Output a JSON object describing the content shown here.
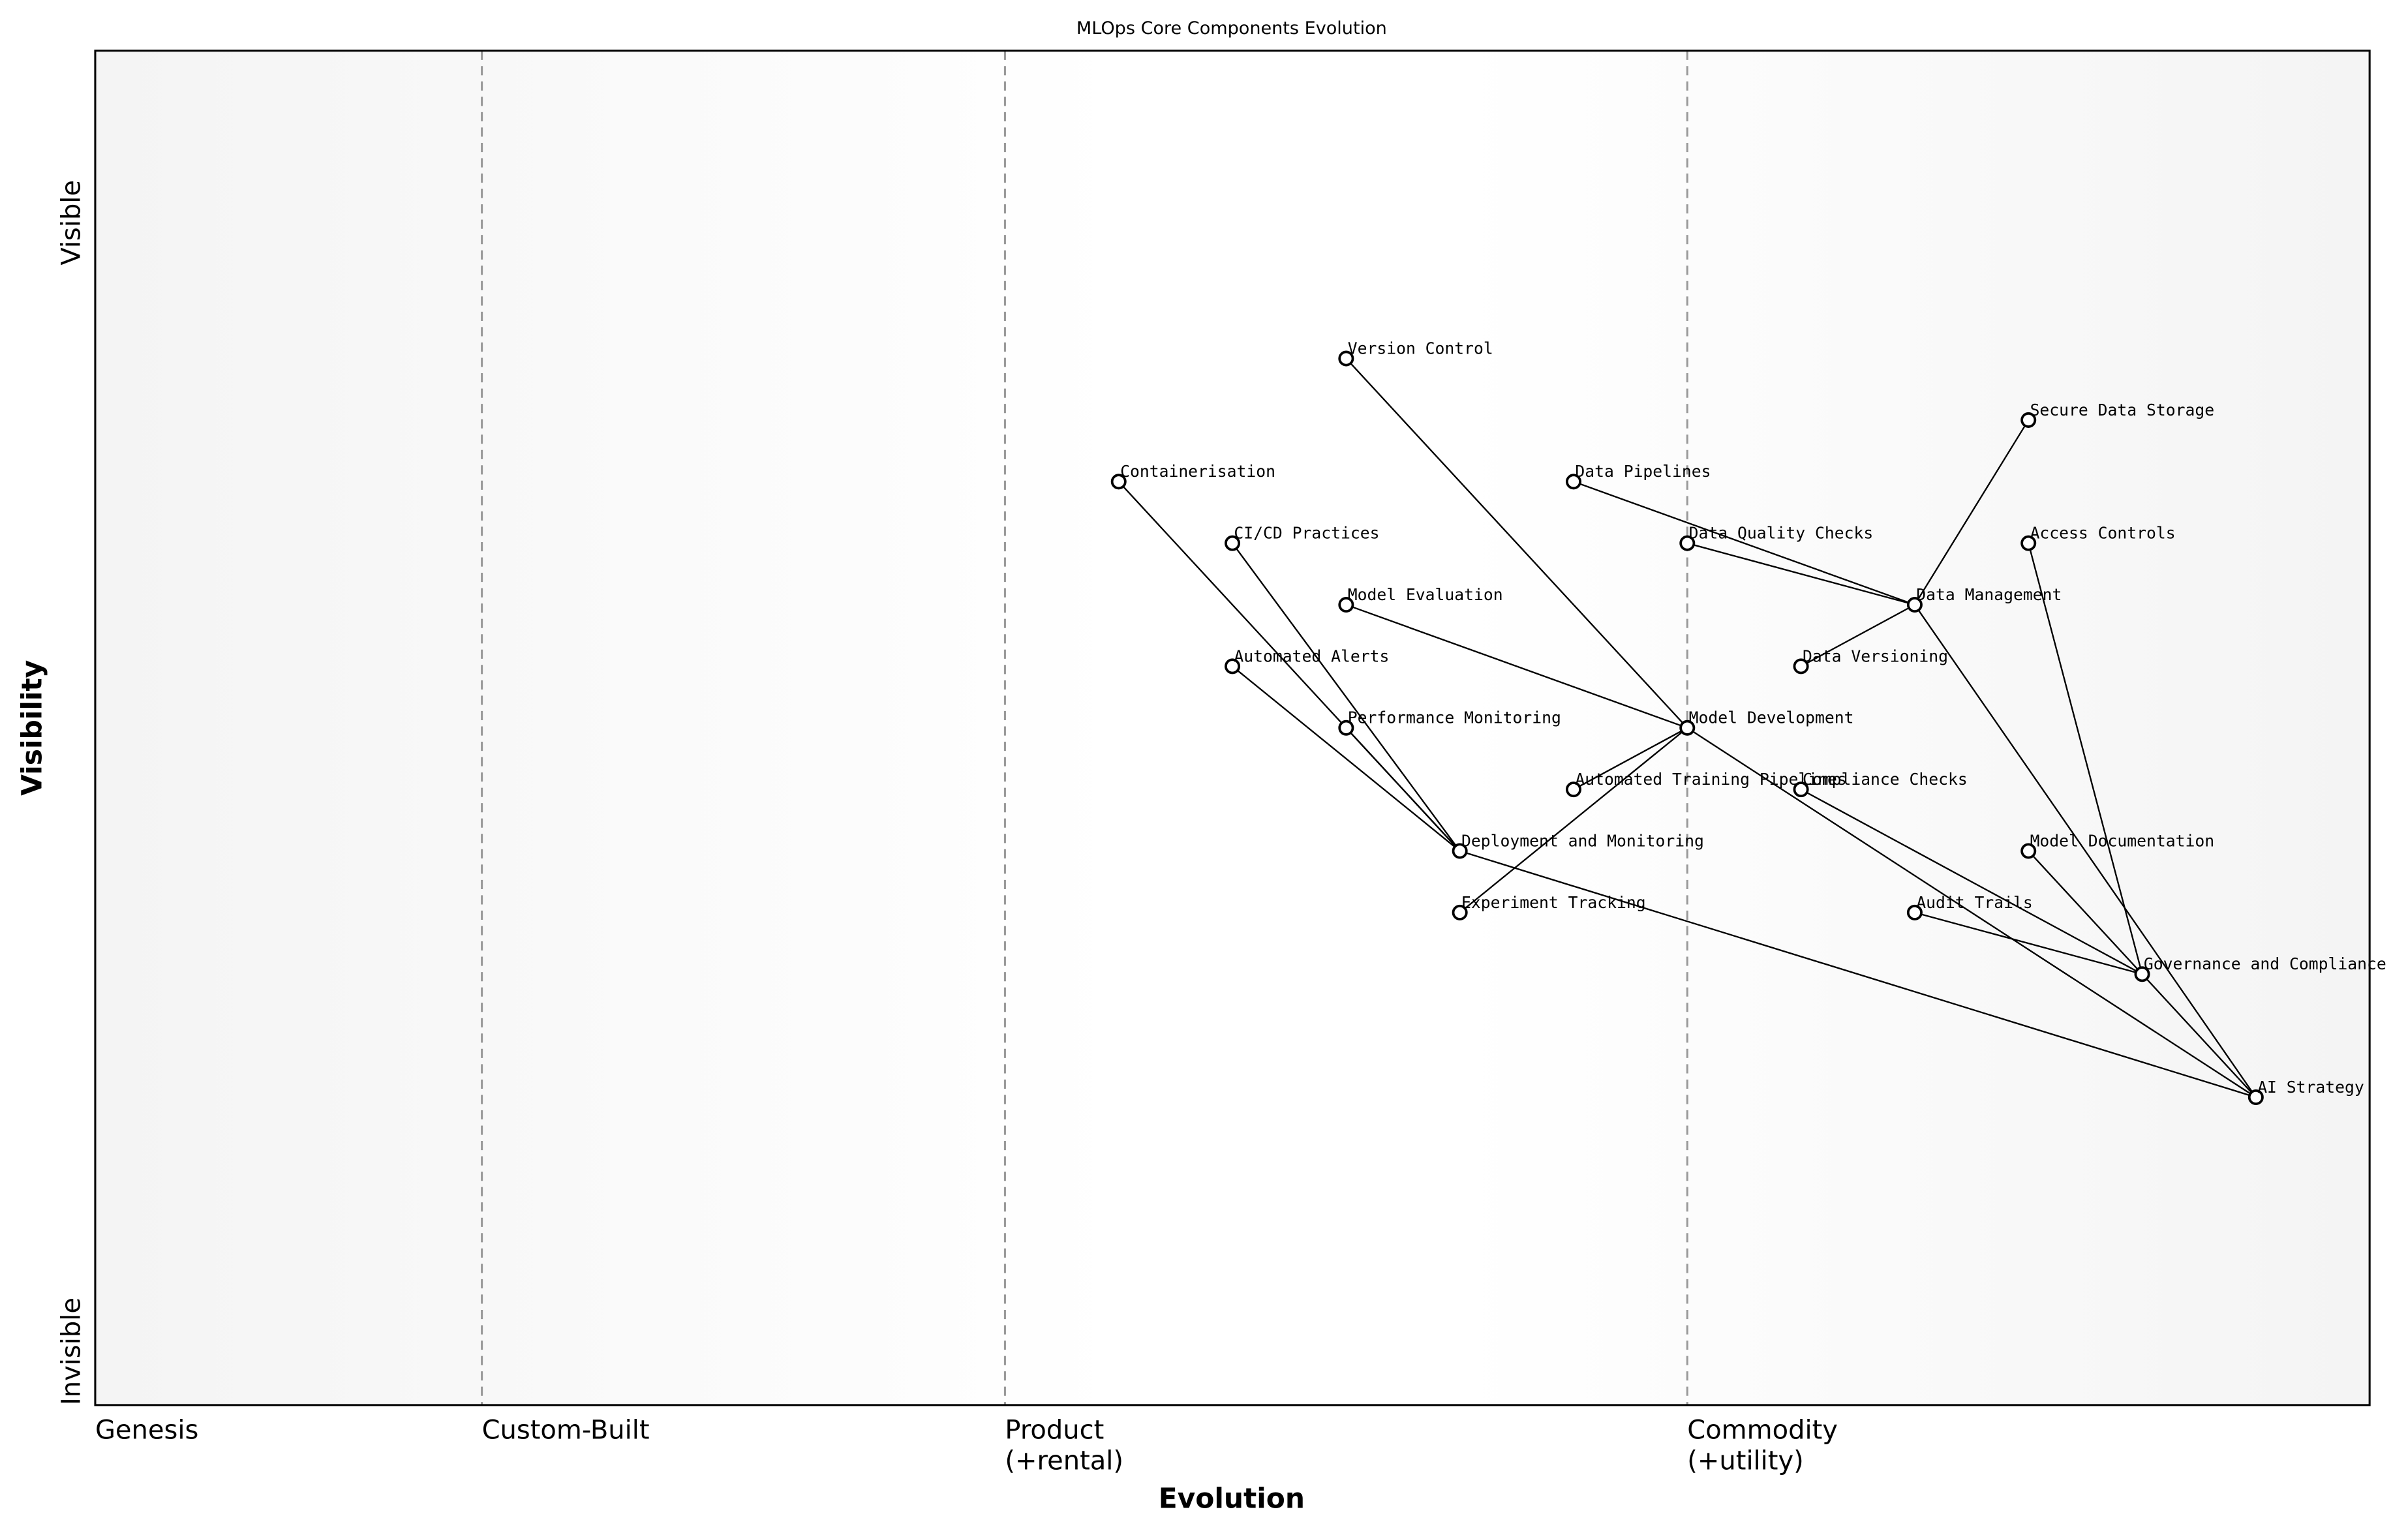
{
  "title": "MLOps Core Components Evolution",
  "x_axis": {
    "label": "Evolution",
    "stages": [
      {
        "label": "Genesis",
        "line2": "",
        "position": 0.0
      },
      {
        "label": "Custom-Built",
        "line2": "",
        "position": 0.17
      },
      {
        "label": "Product",
        "line2": "(+rental)",
        "position": 0.4
      },
      {
        "label": "Commodity",
        "line2": "(+utility)",
        "position": 0.7
      }
    ],
    "range": [
      0,
      1
    ]
  },
  "y_axis": {
    "label": "Visibility",
    "top_label": "Visible",
    "bottom_label": "Invisible",
    "range": [
      0,
      1.1
    ]
  },
  "colors": {
    "node_fill": "#ffffff",
    "node_stroke": "#000000",
    "edge": "#000000",
    "stage_line": "#999999",
    "background_edge": "#f4f4f4",
    "background_center": "#ffffff"
  },
  "nodes": [
    {
      "name": "Version Control",
      "evolution": 0.55,
      "visibility": 0.85
    },
    {
      "name": "Secure Data Storage",
      "evolution": 0.85,
      "visibility": 0.8
    },
    {
      "name": "Containerisation",
      "evolution": 0.45,
      "visibility": 0.75
    },
    {
      "name": "Data Pipelines",
      "evolution": 0.65,
      "visibility": 0.75
    },
    {
      "name": "CI/CD Practices",
      "evolution": 0.5,
      "visibility": 0.7
    },
    {
      "name": "Data Quality Checks",
      "evolution": 0.7,
      "visibility": 0.7
    },
    {
      "name": "Access Controls",
      "evolution": 0.85,
      "visibility": 0.7
    },
    {
      "name": "Model Evaluation",
      "evolution": 0.55,
      "visibility": 0.65
    },
    {
      "name": "Data Management",
      "evolution": 0.8,
      "visibility": 0.65
    },
    {
      "name": "Automated Alerts",
      "evolution": 0.5,
      "visibility": 0.6
    },
    {
      "name": "Data Versioning",
      "evolution": 0.75,
      "visibility": 0.6
    },
    {
      "name": "Performance Monitoring",
      "evolution": 0.55,
      "visibility": 0.55
    },
    {
      "name": "Model Development",
      "evolution": 0.7,
      "visibility": 0.55
    },
    {
      "name": "Automated Training Pipelines",
      "evolution": 0.65,
      "visibility": 0.5
    },
    {
      "name": "Compliance Checks",
      "evolution": 0.75,
      "visibility": 0.5
    },
    {
      "name": "Deployment and Monitoring",
      "evolution": 0.6,
      "visibility": 0.45
    },
    {
      "name": "Model Documentation",
      "evolution": 0.85,
      "visibility": 0.45
    },
    {
      "name": "Experiment Tracking",
      "evolution": 0.6,
      "visibility": 0.4
    },
    {
      "name": "Audit Trails",
      "evolution": 0.8,
      "visibility": 0.4
    },
    {
      "name": "Governance and Compliance",
      "evolution": 0.9,
      "visibility": 0.35
    },
    {
      "name": "AI Strategy",
      "evolution": 0.95,
      "visibility": 0.25
    }
  ],
  "edges": [
    [
      "Version Control",
      "Model Development"
    ],
    [
      "Model Evaluation",
      "Model Development"
    ],
    [
      "Automated Training Pipelines",
      "Model Development"
    ],
    [
      "Experiment Tracking",
      "Model Development"
    ],
    [
      "Model Development",
      "AI Strategy"
    ],
    [
      "Containerisation",
      "Deployment and Monitoring"
    ],
    [
      "CI/CD Practices",
      "Deployment and Monitoring"
    ],
    [
      "Automated Alerts",
      "Deployment and Monitoring"
    ],
    [
      "Performance Monitoring",
      "Deployment and Monitoring"
    ],
    [
      "Deployment and Monitoring",
      "AI Strategy"
    ],
    [
      "Data Pipelines",
      "Data Management"
    ],
    [
      "Data Quality Checks",
      "Data Management"
    ],
    [
      "Data Versioning",
      "Data Management"
    ],
    [
      "Secure Data Storage",
      "Data Management"
    ],
    [
      "Data Management",
      "AI Strategy"
    ],
    [
      "Access Controls",
      "Governance and Compliance"
    ],
    [
      "Compliance Checks",
      "Governance and Compliance"
    ],
    [
      "Model Documentation",
      "Governance and Compliance"
    ],
    [
      "Audit Trails",
      "Governance and Compliance"
    ],
    [
      "Governance and Compliance",
      "AI Strategy"
    ]
  ]
}
